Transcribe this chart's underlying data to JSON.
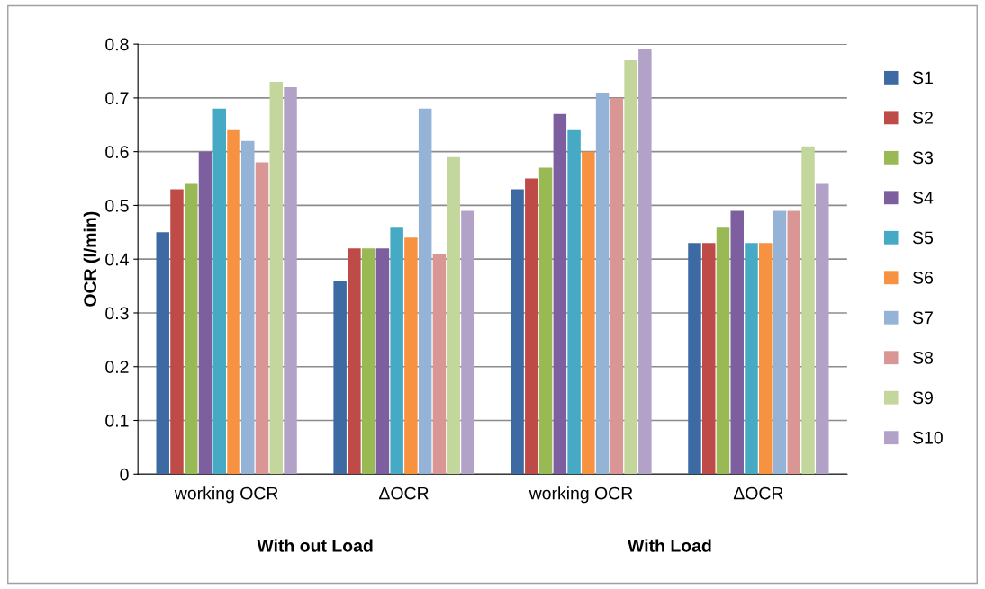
{
  "chart_data": {
    "type": "bar",
    "ylabel": "OCR (l/min)",
    "categories": [
      "working OCR",
      "ΔOCR",
      "working OCR",
      "ΔOCR"
    ],
    "series": [
      {
        "name": "S1",
        "color": "#3e6aa3",
        "values": [
          0.45,
          0.36,
          0.53,
          0.43
        ]
      },
      {
        "name": "S2",
        "color": "#be4b48",
        "values": [
          0.53,
          0.42,
          0.55,
          0.43
        ]
      },
      {
        "name": "S3",
        "color": "#98b954",
        "values": [
          0.54,
          0.42,
          0.57,
          0.46
        ]
      },
      {
        "name": "S4",
        "color": "#7d5fa0",
        "values": [
          0.6,
          0.42,
          0.67,
          0.49
        ]
      },
      {
        "name": "S5",
        "color": "#46aac5",
        "values": [
          0.68,
          0.46,
          0.64,
          0.43
        ]
      },
      {
        "name": "S6",
        "color": "#f69240",
        "values": [
          0.64,
          0.44,
          0.6,
          0.43
        ]
      },
      {
        "name": "S7",
        "color": "#95b3d7",
        "values": [
          0.62,
          0.68,
          0.71,
          0.49
        ]
      },
      {
        "name": "S8",
        "color": "#d99694",
        "values": [
          0.58,
          0.41,
          0.7,
          0.49
        ]
      },
      {
        "name": "S9",
        "color": "#c3d69b",
        "values": [
          0.73,
          0.59,
          0.77,
          0.61
        ]
      },
      {
        "name": "S10",
        "color": "#b3a2c7",
        "values": [
          0.72,
          0.49,
          0.79,
          0.54
        ]
      }
    ],
    "annotations": [
      "With out Load",
      "With Load"
    ],
    "ylim": [
      0,
      0.8
    ],
    "yticks": [
      0,
      0.1,
      0.2,
      0.3,
      0.4,
      0.5,
      0.6,
      0.7,
      0.8
    ],
    "grid": "y",
    "legend": "right"
  }
}
